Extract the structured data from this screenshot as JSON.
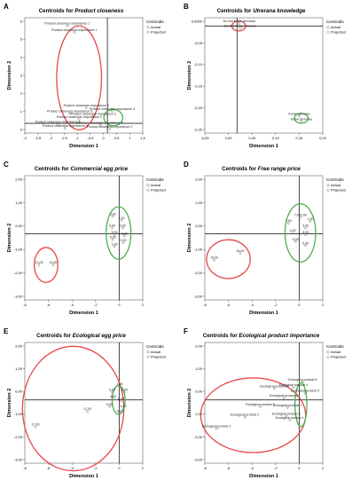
{
  "panels": [
    {
      "letter": "A",
      "title_prefix": "Centroids for ",
      "title_emph": "Product closeness",
      "xlabel": "Dimension 1",
      "ylabel": "Dimension 2"
    },
    {
      "letter": "B",
      "title_prefix": "Centroids for ",
      "title_emph": "Utrerana knowledge",
      "xlabel": "Dimension 1",
      "ylabel": "Dimension 2"
    },
    {
      "letter": "C",
      "title_prefix": "Centroids for ",
      "title_emph": "Commercial egg price",
      "xlabel": "Dimension 1",
      "ylabel": "Dimension 2"
    },
    {
      "letter": "D",
      "title_prefix": "Centroids for ",
      "title_emph": "Free range price",
      "xlabel": "Dimension 1",
      "ylabel": "Dimension 2"
    },
    {
      "letter": "E",
      "title_prefix": "Centroids for ",
      "title_emph": "Ecological egg price",
      "xlabel": "Dimension 1",
      "ylabel": "Dimension 2"
    },
    {
      "letter": "F",
      "title_prefix": "Centroids for ",
      "title_emph": "Ecological product importance",
      "xlabel": "Dimension 1",
      "ylabel": "Dimension 2"
    }
  ],
  "legend": {
    "title": "Centroids",
    "items": [
      "Actual",
      "Projected"
    ]
  },
  "colors": {
    "circle_red": "#e8474b",
    "circle_green": "#4cae50",
    "axis": "#000000"
  },
  "chart_data": [
    {
      "type": "scatter",
      "panel": "A",
      "xlim": [
        -3.5,
        1.5
      ],
      "ylim": [
        -0.6,
        6.5
      ],
      "xticks": [
        "-3",
        "-2.5",
        "-2",
        "-1.5",
        "-1",
        "-0.5",
        "0",
        "0.5",
        "1",
        "1.5"
      ],
      "yticks": [
        "6",
        "5",
        "4",
        "3",
        "2",
        "1",
        "0"
      ],
      "points": [
        {
          "label": "Product closeness importance 1",
          "x": -1.7,
          "y": 6.0
        },
        {
          "label": "Product closeness importance 1",
          "x": -1.4,
          "y": 5.6
        },
        {
          "label": "Product closeness importance 4",
          "x": -0.9,
          "y": 0.95
        },
        {
          "label": "Product closeness importance 4",
          "x": 0.2,
          "y": 0.75
        },
        {
          "label": "Product closeness importance 5",
          "x": -1.6,
          "y": 0.6
        },
        {
          "label": "Product closeness importance 3",
          "x": -0.6,
          "y": 0.45
        },
        {
          "label": "Product closeness importance 2",
          "x": -1.2,
          "y": 0.25
        },
        {
          "label": "Product closeness importance 5",
          "x": -2.1,
          "y": -0.05
        },
        {
          "label": "Product closeness importance 6",
          "x": -0.3,
          "y": -0.1
        },
        {
          "label": "Product closeness importance 2",
          "x": -1.8,
          "y": -0.3
        },
        {
          "label": "Product closeness importance 2",
          "x": 0.1,
          "y": -0.35
        }
      ],
      "circles": [
        {
          "color": "red",
          "cx": -1.2,
          "cy": 2.8,
          "rx": 0.95,
          "ry": 3.2
        },
        {
          "color": "green",
          "cx": 0.25,
          "cy": 0.35,
          "rx": 0.4,
          "ry": 0.5
        }
      ]
    },
    {
      "type": "scatter",
      "panel": "B",
      "xlim": [
        -0.075,
        0.2
      ],
      "ylim": [
        -0.26,
        0.02
      ],
      "xticks": [
        "-0,05",
        "0,00",
        "0,05",
        "0,10",
        "0,15",
        "0,20"
      ],
      "yticks": [
        "0,0000",
        "-0,05",
        "-0,10",
        "-0,15",
        "-0,20",
        "-0,25"
      ],
      "points": [
        {
          "label": "Do Not Know Utrerana",
          "x": 0.005,
          "y": 0.006
        },
        {
          "label": "Do Not Know Utrerana",
          "x": 0.008,
          "y": -0.006
        },
        {
          "label": "Know Utrerana",
          "x": 0.145,
          "y": -0.219
        },
        {
          "label": "Know Utrerana",
          "x": 0.15,
          "y": -0.232
        }
      ],
      "circles": [
        {
          "color": "red",
          "cx": 0.004,
          "cy": 0.0,
          "rx": 0.016,
          "ry": 0.012
        },
        {
          "color": "green",
          "cx": 0.15,
          "cy": -0.224,
          "rx": 0.016,
          "ry": 0.012
        }
      ]
    },
    {
      "type": "scatter",
      "panel": "C",
      "xlim": [
        -8,
        2
      ],
      "ylim": [
        -3.4,
        3
      ],
      "xticks": [
        "-8",
        "-6",
        "-4",
        "-2",
        "0",
        "2"
      ],
      "yticks": [
        "2,00",
        "1,00",
        "0,00",
        "-1,00",
        "-2,00",
        "-3,00"
      ],
      "points": [
        {
          "label": "13,00",
          "x": -6.8,
          "y": -1.6
        },
        {
          "label": "13,00",
          "x": -5.6,
          "y": -1.6
        },
        {
          "label": "3,00",
          "x": -0.55,
          "y": 0.9
        },
        {
          "label": "1,00",
          "x": 0.2,
          "y": 0.7
        },
        {
          "label": "4,00",
          "x": -0.6,
          "y": 0.3
        },
        {
          "label": "4,00",
          "x": 0.3,
          "y": 0.3
        },
        {
          "label": "5,00",
          "x": -0.4,
          "y": -0.05
        },
        {
          "label": "2,00",
          "x": 0.45,
          "y": -0.1
        },
        {
          "label": "6,00",
          "x": -0.55,
          "y": -0.3
        },
        {
          "label": "2,00",
          "x": -0.4,
          "y": -0.65
        },
        {
          "label": "5,00",
          "x": 0.35,
          "y": -0.45
        }
      ],
      "circles": [
        {
          "color": "red",
          "cx": -6.2,
          "cy": -1.6,
          "rx": 1.0,
          "ry": 0.9
        },
        {
          "color": "green",
          "cx": -0.05,
          "cy": 0.05,
          "rx": 1.05,
          "ry": 1.35
        }
      ]
    },
    {
      "type": "scatter",
      "panel": "D",
      "xlim": [
        -8,
        2
      ],
      "ylim": [
        -3.4,
        3
      ],
      "xticks": [
        "-8",
        "-6",
        "-4",
        "-2",
        "0",
        "2"
      ],
      "yticks": [
        "2,00",
        "1,00",
        "0,00",
        "-1,00",
        "-2,00",
        "-3,00"
      ],
      "points": [
        {
          "label": "15,00",
          "x": -7.2,
          "y": -1.35
        },
        {
          "label": "15,00",
          "x": -5.0,
          "y": -1.0
        },
        {
          "label": "7,002,00",
          "x": 0.1,
          "y": 0.85
        },
        {
          "label": "1,00",
          "x": 0.95,
          "y": 0.65
        },
        {
          "label": "1,00",
          "x": -0.9,
          "y": 0.55
        },
        {
          "label": "3,00",
          "x": 0.55,
          "y": 0.3
        },
        {
          "label": "4,00",
          "x": -0.55,
          "y": 0.05
        },
        {
          "label": "5,00",
          "x": 0.55,
          "y": -0.05
        },
        {
          "label": "6,00",
          "x": -0.3,
          "y": -0.4
        },
        {
          "label": "5,00",
          "x": 0.55,
          "y": -0.6
        }
      ],
      "circles": [
        {
          "color": "red",
          "cx": -6.0,
          "cy": -1.3,
          "rx": 1.85,
          "ry": 1.0
        },
        {
          "color": "green",
          "cx": 0.1,
          "cy": 0.05,
          "rx": 1.3,
          "ry": 1.5
        }
      ]
    },
    {
      "type": "scatter",
      "panel": "E",
      "xlim": [
        -8,
        2
      ],
      "ylim": [
        -3.3,
        3
      ],
      "xticks": [
        "-8",
        "-6",
        "-4",
        "-2",
        "0",
        "2"
      ],
      "yticks": [
        "2,00",
        "1,00",
        "0,00",
        "-1,00",
        "-2,00",
        "-3,00"
      ],
      "points": [
        {
          "label": "17,00",
          "x": -7.1,
          "y": -1.4
        },
        {
          "label": "17,00",
          "x": -2.7,
          "y": -0.6
        },
        {
          "label": "2,00",
          "x": 0.05,
          "y": 0.7
        },
        {
          "label": "3,00",
          "x": -0.6,
          "y": 0.4
        },
        {
          "label": "1,00",
          "x": 0.45,
          "y": 0.4
        },
        {
          "label": "4,00",
          "x": -0.5,
          "y": 0.05
        },
        {
          "label": "6,00",
          "x": 0.15,
          "y": -0.05
        },
        {
          "label": "5,00",
          "x": -0.8,
          "y": -0.35
        },
        {
          "label": "4,00",
          "x": 0.35,
          "y": -0.45
        },
        {
          "label": "6,00",
          "x": 0.05,
          "y": -0.7
        }
      ],
      "circles": [
        {
          "color": "red",
          "cx": -3.9,
          "cy": -0.45,
          "rx": 4.3,
          "ry": 3.25
        },
        {
          "color": "green",
          "cx": -0.05,
          "cy": 0.0,
          "rx": 0.55,
          "ry": 0.75
        }
      ]
    },
    {
      "type": "scatter",
      "panel": "F",
      "xlim": [
        -8,
        2
      ],
      "ylim": [
        -3.3,
        3
      ],
      "xticks": [
        "-8",
        "-6",
        "-4",
        "-2",
        "0",
        "2"
      ],
      "yticks": [
        "2,00",
        "1,00",
        "0,00",
        "-1,00",
        "-2,00",
        "-3,00"
      ],
      "points": [
        {
          "label": "Ecological product 6",
          "x": 0.3,
          "y": 0.95
        },
        {
          "label": "Ecological product 4",
          "x": -0.5,
          "y": 0.65
        },
        {
          "label": "Ecological product 3",
          "x": -2.1,
          "y": 0.6
        },
        {
          "label": "Ecological product 9",
          "x": 0.5,
          "y": 0.35
        },
        {
          "label": "Ecological product 8",
          "x": -1.3,
          "y": 0.1
        },
        {
          "label": "Ecological product 3",
          "x": -3.3,
          "y": -0.35
        },
        {
          "label": "Ecological product 7",
          "x": -1.0,
          "y": -0.4
        },
        {
          "label": "Ecological product 2",
          "x": -4.6,
          "y": -0.9
        },
        {
          "label": "Ecological product 5",
          "x": -1.1,
          "y": -0.85
        },
        {
          "label": "Ecological product 1",
          "x": -0.8,
          "y": -1.05
        },
        {
          "label": "Ecological product 2",
          "x": -7.0,
          "y": -1.5
        }
      ],
      "circles": [
        {
          "color": "red",
          "cx": -3.9,
          "cy": -0.8,
          "rx": 4.45,
          "ry": 1.95
        },
        {
          "color": "green",
          "cx": 0.15,
          "cy": -0.25,
          "rx": 0.5,
          "ry": 1.15
        }
      ]
    }
  ]
}
